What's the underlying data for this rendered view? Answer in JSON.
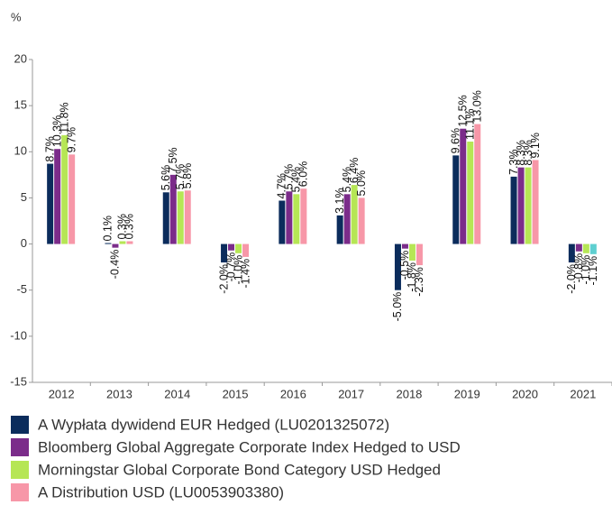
{
  "chart_data": {
    "type": "bar",
    "y_label": "%",
    "categories": [
      "2012",
      "2013",
      "2014",
      "2015",
      "2016",
      "2017",
      "2018",
      "2019",
      "2020",
      "2021"
    ],
    "series": [
      {
        "name": "A Wypłata dywidend EUR Hedged (LU0201325072)",
        "color": "#0b2c5c",
        "values": [
          8.7,
          0.1,
          5.6,
          -2.0,
          4.7,
          3.1,
          -5.0,
          9.6,
          7.3,
          -2.0
        ],
        "value_labels": [
          "8.7%",
          "0.1%",
          "5.6%",
          "-2.0%",
          "4.7%",
          "3.1%",
          "-5.0%",
          "9.6%",
          "7.3%",
          "-2.0%"
        ]
      },
      {
        "name": "Bloomberg Global Aggregate Corporate Index Hedged to USD",
        "color": "#7b2c8a",
        "values": [
          10.3,
          -0.4,
          7.5,
          -0.7,
          5.7,
          5.4,
          -0.5,
          12.5,
          8.3,
          -0.8
        ],
        "value_labels": [
          "10.3%",
          "-0.4%",
          "7.5%",
          "-0.7%",
          "5.7%",
          "5.4%",
          "-0.5%",
          "12.5%",
          "8.3%",
          "-0.8%"
        ]
      },
      {
        "name": "Morningstar Global Corporate Bond Category USD Hedged",
        "color": "#b6e655",
        "values": [
          11.8,
          0.3,
          5.7,
          -1.0,
          5.4,
          6.4,
          -1.8,
          11.1,
          8.3,
          -1.0
        ],
        "value_labels": [
          "11.8%",
          "0.3%",
          "5.7%",
          "-1.0%",
          "5.4%",
          "6.4%",
          "-1.8%",
          "11.1%",
          "8.3%",
          "-1.0%"
        ]
      },
      {
        "name": "A Distribution USD (LU0053903380)",
        "color": "#f797a8",
        "point_colors": [
          "#f797a8",
          "#f797a8",
          "#f797a8",
          "#f797a8",
          "#f797a8",
          "#f797a8",
          "#f797a8",
          "#f797a8",
          "#f797a8",
          "#5ecfd0"
        ],
        "values": [
          9.7,
          0.3,
          5.8,
          -1.4,
          6.0,
          5.0,
          -2.3,
          13.0,
          9.1,
          -1.1
        ],
        "value_labels": [
          "9.7%",
          "0.3%",
          "5.8%",
          "-1.4%",
          "6.0%",
          "5.0%",
          "-2.3%",
          "13.0%",
          "9.1%",
          "-1.1%"
        ]
      }
    ],
    "ylim": [
      -15,
      20
    ],
    "yticks": [
      -15,
      -10,
      -5,
      0,
      5,
      10,
      15,
      20
    ],
    "legend": "bottom"
  }
}
